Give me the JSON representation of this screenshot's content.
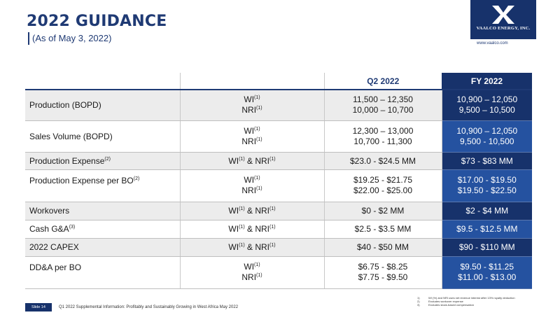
{
  "header": {
    "title": "2022 GUIDANCE",
    "subtitle": "(As of May 3, 2022)"
  },
  "logo": {
    "company": "VAALCO ENERGY, INC.",
    "url": "www.vaalco.com",
    "brand_color": "#17326b"
  },
  "table": {
    "columns": {
      "q2": "Q2 2022",
      "fy": "FY 2022"
    },
    "rows": [
      {
        "label": "Production (BOPD)",
        "lines": [
          {
            "type": "WI",
            "type_sup": "(1)",
            "q2": "11,500 – 12,350",
            "fy": "10,900 – 12,050"
          },
          {
            "type": "NRI",
            "type_sup": "(1)",
            "q2": "10,000 – 10,700",
            "fy": "9,500 – 10,500"
          }
        ]
      },
      {
        "label": "Sales Volume (BOPD)",
        "lines": [
          {
            "type": "WI",
            "type_sup": "(1)",
            "q2": "12,300 – 13,000",
            "fy": "10,900 – 12,050"
          },
          {
            "type": "NRI",
            "type_sup": "(1)",
            "q2": "10,700 - 11,300",
            "fy": "9,500 - 10,500"
          }
        ]
      },
      {
        "label": "Production Expense",
        "label_sup": "(2)",
        "type_a": "WI",
        "type_a_sup": "(1)",
        "type_join": " & ",
        "type_b": "NRI",
        "type_b_sup": "(1)",
        "q2": "$23.0 - $24.5 MM",
        "fy": "$73 - $83 MM"
      },
      {
        "label": "Production Expense per BO",
        "label_sup": "(2)",
        "lines": [
          {
            "type": "WI",
            "type_sup": "(1)",
            "q2": "$19.25 - $21.75",
            "fy": "$17.00 - $19.50"
          },
          {
            "type": "NRI",
            "type_sup": "(1)",
            "q2": "$22.00 - $25.00",
            "fy": "$19.50 - $22.50"
          }
        ]
      },
      {
        "label": "Workovers",
        "type_a": "WI",
        "type_a_sup": "(1)",
        "type_join": " & ",
        "type_b": "NRI",
        "type_b_sup": "(1)",
        "q2": "$0 - $2 MM",
        "fy": "$2 - $4 MM"
      },
      {
        "label": "Cash G&A",
        "label_sup": "(3)",
        "type_a": "WI",
        "type_a_sup": "(1)",
        "type_join": " & ",
        "type_b": "NRI",
        "type_b_sup": "(1)",
        "q2": "$2.5 - $3.5 MM",
        "fy": "$9.5 - $12.5 MM"
      },
      {
        "label": "2022 CAPEX",
        "type_a": "WI",
        "type_a_sup": "(1)",
        "type_join": " & ",
        "type_b": "NRI",
        "type_b_sup": "(1)",
        "q2": "$40 - $50 MM",
        "fy": "$90 - $110 MM"
      },
      {
        "label": "DD&A per BO",
        "lines": [
          {
            "type": "WI",
            "type_sup": "(1)",
            "q2": "$6.75 - $8.25",
            "fy": "$9.50 - $11.25"
          },
          {
            "type": "NRI",
            "type_sup": "(1)",
            "q2": "$7.75 - $9.50",
            "fy": "$11.00 - $13.00"
          }
        ]
      }
    ]
  },
  "footnotes": [
    {
      "num": "1)",
      "text": "WI (%) and NRI uses net revenue interest after 13% royalty deduction"
    },
    {
      "num": "2)",
      "text": "Excludes workover expense"
    },
    {
      "num": "3)",
      "text": "Excludes stock-based compensation"
    }
  ],
  "footer": {
    "slide": "Slide 14",
    "text": "Q1 2022 Supplemental Information: Profitably and Sustainably Growing in West Africa May 2022"
  }
}
